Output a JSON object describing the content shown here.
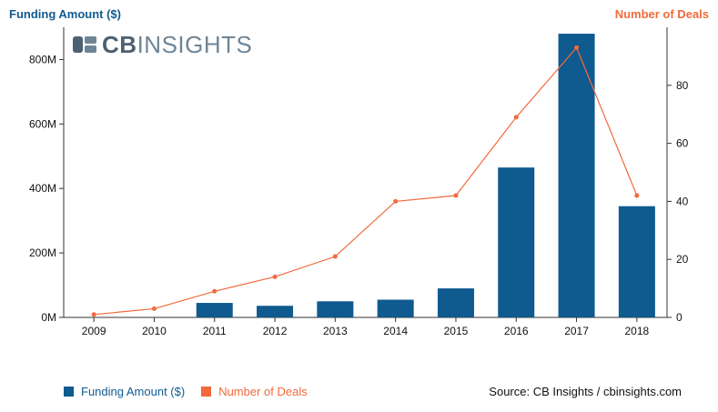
{
  "colors": {
    "bar": "#0f5a8f",
    "line": "#f26a3c",
    "axis": "#333333"
  },
  "header": {
    "left_title": "Funding Amount ($)",
    "right_title": "Number of Deals"
  },
  "logo": {
    "text_bold": "CB",
    "text": "INSIGHTS",
    "icon": "cb-insights-logo-icon"
  },
  "legend": {
    "funding_label": "Funding Amount ($)",
    "deals_label": "Number of Deals"
  },
  "source": "Source: CB Insights / cbinsights.com",
  "chart_data": {
    "type": "bar",
    "categories": [
      "2009",
      "2010",
      "2011",
      "2012",
      "2013",
      "2014",
      "2015",
      "2016",
      "2017",
      "2018"
    ],
    "series": [
      {
        "name": "Funding Amount ($)",
        "type": "bar",
        "axis": "left",
        "values": [
          0,
          0,
          45000000,
          36000000,
          50000000,
          55000000,
          90000000,
          465000000,
          880000000,
          345000000
        ]
      },
      {
        "name": "Number of Deals",
        "type": "line",
        "axis": "right",
        "values": [
          1,
          3,
          9,
          14,
          21,
          40,
          42,
          69,
          93,
          42
        ]
      }
    ],
    "y_left": {
      "label": "Funding Amount ($)",
      "ticks": [
        0,
        200000000,
        400000000,
        600000000,
        800000000
      ],
      "tick_labels": [
        "0M",
        "200M",
        "400M",
        "600M",
        "800M"
      ],
      "lim": [
        0,
        900000000
      ]
    },
    "y_right": {
      "label": "Number of Deals",
      "ticks": [
        0,
        20,
        40,
        60,
        80
      ],
      "tick_labels": [
        "0",
        "20",
        "40",
        "60",
        "80"
      ],
      "lim": [
        0,
        100
      ]
    },
    "grid": false,
    "legend_position": "bottom-left"
  }
}
